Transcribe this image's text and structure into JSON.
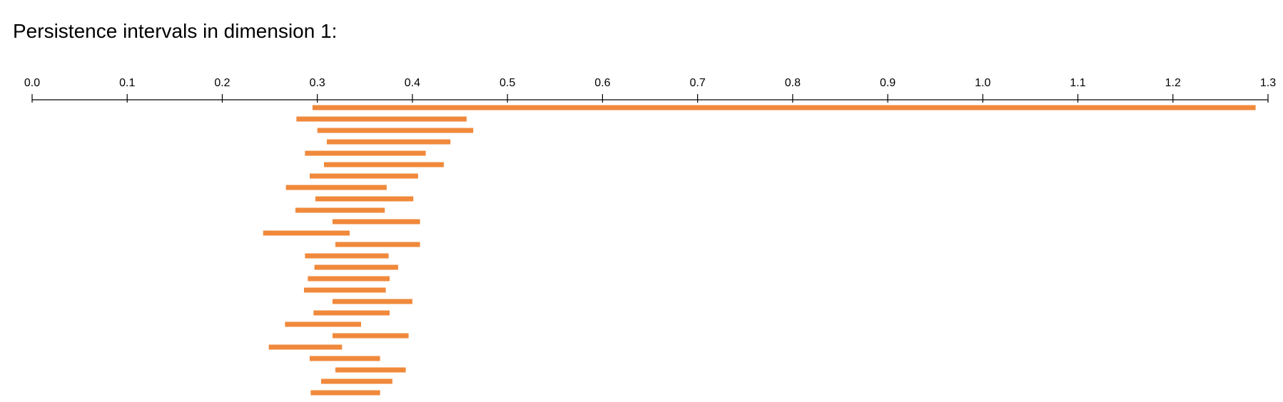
{
  "chart_data": {
    "type": "barcode",
    "title": "Persistence intervals in dimension 1:",
    "xlim": [
      0.0,
      1.3
    ],
    "ticks": [
      "0.0",
      "0.1",
      "0.2",
      "0.3",
      "0.4",
      "0.5",
      "0.6",
      "0.7",
      "0.8",
      "0.9",
      "1.0",
      "1.1",
      "1.2",
      "1.3"
    ],
    "tick_values": [
      0.0,
      0.1,
      0.2,
      0.3,
      0.4,
      0.5,
      0.6,
      0.7,
      0.8,
      0.9,
      1.0,
      1.1,
      1.2,
      1.3
    ],
    "bar_color": "#f0893b",
    "axis_color": "#000000",
    "intervals": [
      [
        0.295,
        1.287
      ],
      [
        0.278,
        0.457
      ],
      [
        0.3,
        0.464
      ],
      [
        0.31,
        0.44
      ],
      [
        0.287,
        0.414
      ],
      [
        0.307,
        0.433
      ],
      [
        0.292,
        0.406
      ],
      [
        0.267,
        0.373
      ],
      [
        0.298,
        0.401
      ],
      [
        0.277,
        0.371
      ],
      [
        0.316,
        0.408
      ],
      [
        0.243,
        0.334
      ],
      [
        0.319,
        0.408
      ],
      [
        0.287,
        0.375
      ],
      [
        0.297,
        0.385
      ],
      [
        0.29,
        0.376
      ],
      [
        0.286,
        0.372
      ],
      [
        0.316,
        0.4
      ],
      [
        0.296,
        0.376
      ],
      [
        0.266,
        0.346
      ],
      [
        0.316,
        0.396
      ],
      [
        0.249,
        0.326
      ],
      [
        0.292,
        0.366
      ],
      [
        0.319,
        0.393
      ],
      [
        0.304,
        0.379
      ],
      [
        0.293,
        0.366
      ]
    ]
  }
}
